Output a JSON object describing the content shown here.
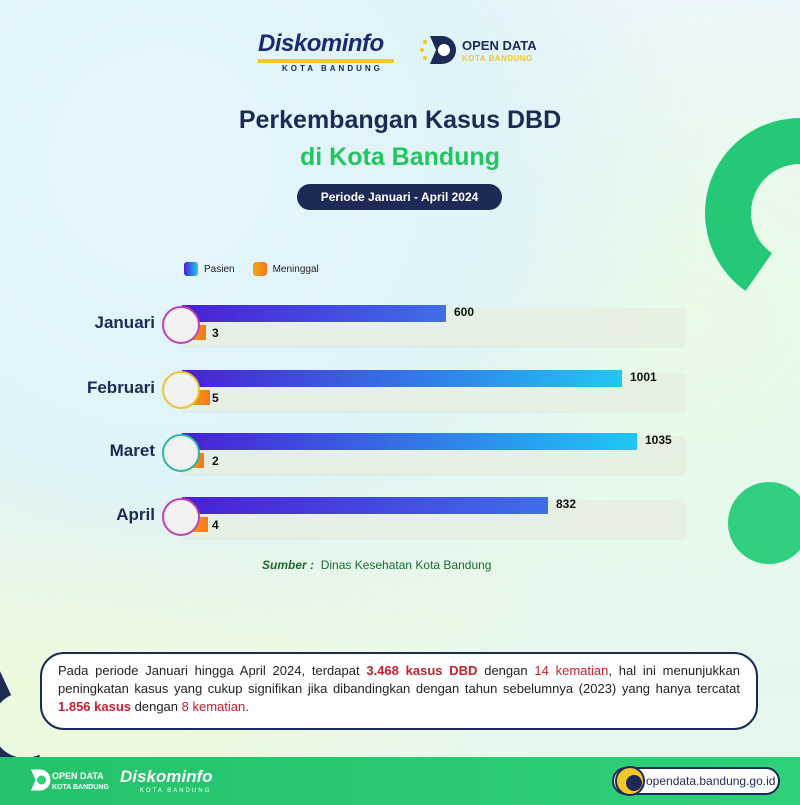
{
  "header": {
    "diskominfo": "Diskominfo",
    "diskominfo_sub": "KOTA BANDUNG",
    "opendata_title": "OPEN DATA",
    "opendata_sub": "KOTA BANDUNG"
  },
  "title_line1": "Perkembangan Kasus DBD",
  "title_line2": "di Kota Bandung",
  "period": "Periode  Januari - April 2024",
  "colors": {
    "pasien_start": "#4a1fd6",
    "pasien_end": "#1ec8f5",
    "meninggal": "#f5931a",
    "navy": "#1c2a55",
    "green": "#22c55e"
  },
  "chart_data": {
    "type": "bar",
    "orientation": "horizontal",
    "categories": [
      "Januari",
      "Februari",
      "Maret",
      "April"
    ],
    "series": [
      {
        "name": "Pasien",
        "values": [
          600,
          1001,
          1035,
          832
        ]
      },
      {
        "name": "Meninggal",
        "values": [
          3,
          5,
          2,
          4
        ]
      }
    ],
    "legend": [
      "Pasien",
      "Meninggal"
    ],
    "legend_position": "top-left",
    "xlim": [
      0,
      1035
    ]
  },
  "source": {
    "label": "Sumber :",
    "text": "Dinas Kesehatan Kota Bandung"
  },
  "summary": {
    "p1": "Pada periode Januari hingga April 2024, terdapat ",
    "h1": "3.468 kasus DBD",
    "p2": " dengan ",
    "h2": "14 kematian",
    "p3": ", hal ini menunjukkan peningkatan kasus yang cukup signifikan jika dibandingkan dengan tahun sebelumnya (2023) yang hanya tercatat ",
    "h3": "1.856 kasus",
    "p4": " dengan ",
    "h4": "8 kematian",
    "p5": "."
  },
  "footer": {
    "od_line1": "OPEN DATA",
    "od_line2": "KOTA BANDUNG",
    "diskominfo": "Diskominfo",
    "diskominfo_sub": "KOTA BANDUNG",
    "url": "opendata.bandung.go.id"
  }
}
